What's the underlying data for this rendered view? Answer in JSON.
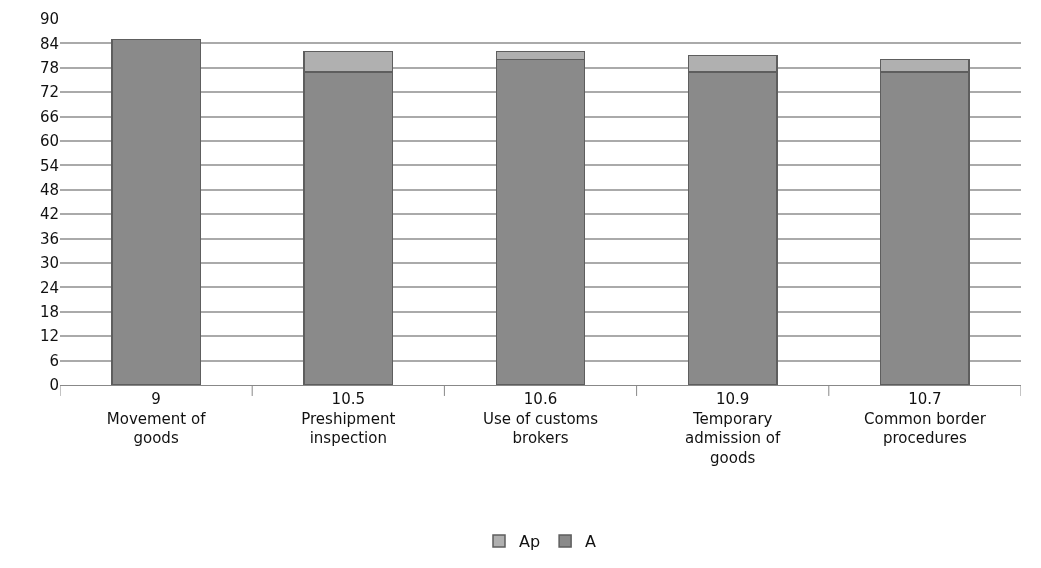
{
  "chart_data": {
    "type": "bar",
    "stacked": true,
    "categories": [
      "9\nMovement of\ngoods",
      "10.5\nPreshipment\ninspection",
      "10.6\nUse of customs\nbrokers",
      "10.9\nTemporary\nadmission of\ngoods",
      "10.7\nCommon border\nprocedures"
    ],
    "series": [
      {
        "name": "A",
        "color": "#8a8a8a",
        "values": [
          85,
          77,
          80,
          77,
          77
        ]
      },
      {
        "name": "Ap",
        "color": "#b0b0b0",
        "values": [
          null,
          5,
          2,
          4,
          3
        ]
      }
    ],
    "ylim": [
      0,
      90
    ],
    "yticks": [
      0,
      6,
      12,
      18,
      24,
      30,
      36,
      42,
      48,
      54,
      60,
      66,
      72,
      78,
      84,
      90
    ],
    "grid": "y",
    "legend": "bottom"
  }
}
